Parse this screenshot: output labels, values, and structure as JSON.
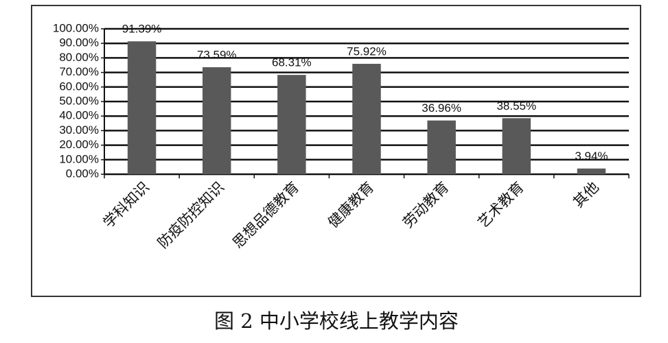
{
  "chart_data": {
    "type": "bar",
    "title": "图 2 中小学校线上教学内容",
    "categories": [
      "学科知识",
      "防疫防控知识",
      "思想品德教育",
      "健康教育",
      "劳动教育",
      "艺术教育",
      "其他"
    ],
    "values": [
      91.39,
      73.59,
      68.31,
      75.92,
      36.96,
      38.55,
      3.94
    ],
    "value_labels": [
      "91.39%",
      "73.59%",
      "68.31%",
      "75.92%",
      "36.96%",
      "38.55%",
      "3.94%"
    ],
    "color": "#595959",
    "ylim": [
      0,
      100
    ],
    "yticks": [
      {
        "value": 0,
        "label": "0.00%"
      },
      {
        "value": 10,
        "label": "10.00%"
      },
      {
        "value": 20,
        "label": "20.00%"
      },
      {
        "value": 30,
        "label": "30.00%"
      },
      {
        "value": 40,
        "label": "40.00%"
      },
      {
        "value": 50,
        "label": "50.00%"
      },
      {
        "value": 60,
        "label": "60.00%"
      },
      {
        "value": 70,
        "label": "70.00%"
      },
      {
        "value": 80,
        "label": "80.00%"
      },
      {
        "value": 90,
        "label": "90.00%"
      },
      {
        "value": 100,
        "label": "100.00%"
      }
    ],
    "grid": true
  }
}
